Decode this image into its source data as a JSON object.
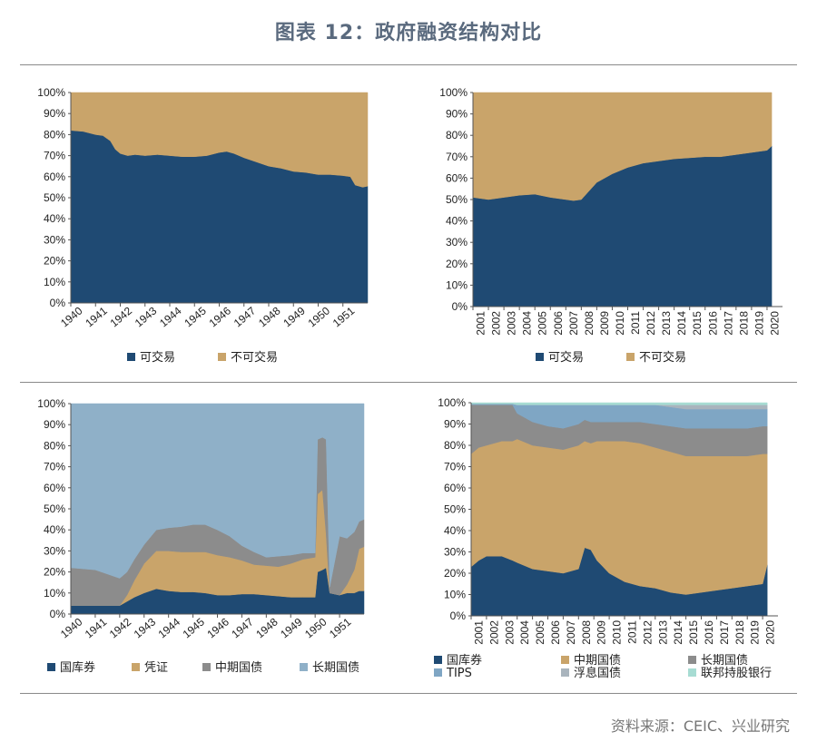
{
  "header": {
    "title": "图表 12：政府融资结构对比"
  },
  "footer": {
    "source": "资料来源：CEIC、兴业研究"
  },
  "colors": {
    "navy": "#1f4a73",
    "tan": "#c9a46a",
    "gray": "#8c8c8c",
    "lightblue": "#8fb0c8",
    "tips": "#7fa6c4",
    "floating": "#a9b4bd",
    "fed": "#a7dcd3"
  },
  "chart_data": [
    {
      "type": "area",
      "stacking": "percent",
      "x_ticks": [
        "1940",
        "1941",
        "1942",
        "1943",
        "1944",
        "1945",
        "1946",
        "1947",
        "1948",
        "1949",
        "1950",
        "1951"
      ],
      "x": [
        1940.0,
        1940.5,
        1941.0,
        1941.3,
        1941.6,
        1941.8,
        1942.0,
        1942.3,
        1942.6,
        1943.0,
        1943.5,
        1944.0,
        1944.5,
        1945.0,
        1945.5,
        1946.0,
        1946.3,
        1946.6,
        1947.0,
        1947.5,
        1948.0,
        1948.5,
        1949.0,
        1949.5,
        1950.0,
        1950.5,
        1951.0,
        1951.3,
        1951.5,
        1951.8,
        1952.0
      ],
      "ylim": [
        0,
        100
      ],
      "y_ticks": [
        "0%",
        "10%",
        "20%",
        "30%",
        "40%",
        "50%",
        "60%",
        "70%",
        "80%",
        "90%",
        "100%"
      ],
      "legend_position": "bottom",
      "series": [
        {
          "name": "可交易",
          "color": "#1f4a73",
          "values": [
            82,
            81.5,
            80,
            79.5,
            77,
            73,
            71,
            70,
            70.5,
            70,
            70.5,
            70,
            69.5,
            69.5,
            70,
            71.5,
            72,
            71,
            69,
            67,
            65,
            64,
            62.5,
            62,
            61,
            61,
            60.5,
            60,
            56,
            55,
            55.5
          ]
        },
        {
          "name": "不可交易",
          "color": "#c9a46a",
          "values": [
            18,
            18.5,
            20,
            20.5,
            23,
            27,
            29,
            30,
            29.5,
            30,
            29.5,
            30,
            30.5,
            30.5,
            30,
            28.5,
            28,
            29,
            31,
            33,
            35,
            36,
            37.5,
            38,
            39,
            39,
            39.5,
            40,
            44,
            45,
            44.5
          ]
        }
      ]
    },
    {
      "type": "area",
      "stacking": "percent",
      "x_ticks": [
        "2001",
        "2002",
        "2003",
        "2004",
        "2005",
        "2006",
        "2007",
        "2008",
        "2009",
        "2010",
        "2011",
        "2012",
        "2013",
        "2014",
        "2015",
        "2016",
        "2017",
        "2018",
        "2019",
        "2020"
      ],
      "x": [
        2001,
        2002,
        2003,
        2004,
        2005,
        2006,
        2007,
        2007.5,
        2008,
        2008.5,
        2009,
        2010,
        2011,
        2012,
        2013,
        2014,
        2015,
        2016,
        2017,
        2018,
        2019,
        2020,
        2020.3
      ],
      "ylim": [
        0,
        100
      ],
      "y_ticks": [
        "0%",
        "10%",
        "20%",
        "30%",
        "40%",
        "50%",
        "60%",
        "70%",
        "80%",
        "90%",
        "100%"
      ],
      "legend_position": "bottom",
      "series": [
        {
          "name": "可交易",
          "color": "#1f4a73",
          "values": [
            51,
            50,
            51,
            52,
            52.5,
            51,
            50,
            49.5,
            50,
            54,
            58,
            62,
            65,
            67,
            68,
            69,
            69.5,
            70,
            70,
            71,
            72,
            73,
            75
          ]
        },
        {
          "name": "不可交易",
          "color": "#c9a46a",
          "values": [
            49,
            50,
            49,
            48,
            47.5,
            49,
            50,
            50.5,
            50,
            46,
            42,
            38,
            35,
            33,
            32,
            31,
            30.5,
            30,
            30,
            29,
            28,
            27,
            25
          ]
        }
      ]
    },
    {
      "type": "area",
      "stacking": "percent",
      "x_ticks": [
        "1940",
        "1941",
        "1942",
        "1943",
        "1944",
        "1945",
        "1946",
        "1947",
        "1948",
        "1949",
        "1950",
        "1951"
      ],
      "x": [
        1940.0,
        1941.0,
        1941.5,
        1942.0,
        1942.3,
        1942.6,
        1943.0,
        1943.5,
        1944.0,
        1944.5,
        1945.0,
        1945.5,
        1946.0,
        1946.5,
        1947.0,
        1947.5,
        1948.0,
        1948.5,
        1949.0,
        1949.5,
        1950.0,
        1950.1,
        1950.3,
        1950.45,
        1950.6,
        1951.0,
        1951.3,
        1951.6,
        1951.8,
        1952.0
      ],
      "ylim": [
        0,
        100
      ],
      "y_ticks": [
        "0%",
        "10%",
        "20%",
        "30%",
        "40%",
        "50%",
        "60%",
        "70%",
        "80%",
        "90%",
        "100%"
      ],
      "legend_position": "bottom",
      "series": [
        {
          "name": "国库券",
          "color": "#1f4a73",
          "values": [
            4,
            4,
            4,
            4,
            6,
            8,
            10,
            12,
            11,
            10.5,
            10.5,
            10,
            9,
            9,
            9.5,
            9.5,
            9,
            8.5,
            8,
            8,
            8,
            20,
            21,
            22,
            10,
            9,
            10,
            10,
            11,
            11
          ]
        },
        {
          "name": "凭证",
          "color": "#c9a46a",
          "values": [
            0,
            0,
            0,
            0,
            3,
            8,
            14,
            18,
            19,
            19,
            19,
            19.5,
            19,
            18,
            16,
            14,
            14,
            14,
            16,
            18,
            19,
            37,
            38,
            16,
            0,
            0,
            4,
            11,
            20,
            21
          ]
        },
        {
          "name": "中期国债",
          "color": "#8c8c8c",
          "values": [
            18,
            17,
            15,
            13,
            11,
            10,
            9,
            10,
            11,
            12,
            13,
            13,
            12,
            10,
            7,
            6,
            4,
            5,
            4,
            3,
            2,
            26,
            25,
            45,
            3,
            28,
            22,
            18,
            13,
            13
          ]
        },
        {
          "name": "长期国债",
          "color": "#8fb0c8",
          "values": [
            78,
            79,
            81,
            83,
            80,
            74,
            67,
            60,
            59,
            58.5,
            57.5,
            57.5,
            60,
            63,
            67.5,
            70.5,
            73,
            72.5,
            72,
            71,
            71,
            17,
            16,
            17,
            87,
            63,
            64,
            61,
            56,
            55
          ]
        }
      ]
    },
    {
      "type": "area",
      "stacking": "percent",
      "x_ticks": [
        "2001",
        "2002",
        "2003",
        "2004",
        "2005",
        "2006",
        "2007",
        "2008",
        "2009",
        "2010",
        "2011",
        "2012",
        "2013",
        "2014",
        "2015",
        "2016",
        "2017",
        "2018",
        "2019",
        "2020"
      ],
      "x": [
        2001,
        2001.5,
        2002,
        2003,
        2003.7,
        2004,
        2005,
        2006,
        2007,
        2008,
        2008.4,
        2008.8,
        2009.2,
        2010,
        2011,
        2012,
        2013,
        2014,
        2015,
        2016,
        2017,
        2018,
        2019,
        2020,
        2020.3
      ],
      "ylim": [
        0,
        100
      ],
      "y_ticks": [
        "0%",
        "10%",
        "20%",
        "30%",
        "40%",
        "50%",
        "60%",
        "70%",
        "80%",
        "90%",
        "100%"
      ],
      "legend_position": "bottom",
      "series": [
        {
          "name": "国库券",
          "color": "#1f4a73",
          "values": [
            23,
            26,
            28,
            28,
            26,
            25,
            22,
            21,
            20,
            22,
            32,
            31,
            26,
            20,
            16,
            14,
            13,
            11,
            10,
            11,
            12,
            13,
            14,
            15,
            24
          ]
        },
        {
          "name": "中期国债",
          "color": "#c9a46a",
          "values": [
            53,
            53,
            52,
            54,
            56,
            58,
            58,
            58,
            58,
            58,
            50,
            50,
            56,
            62,
            66,
            67,
            66,
            66,
            65,
            64,
            63,
            62,
            61,
            61,
            52
          ]
        },
        {
          "name": "长期国债",
          "color": "#8c8c8c",
          "values": [
            23,
            20,
            19,
            17,
            17,
            12,
            11,
            10,
            10,
            10,
            10,
            10,
            9,
            9,
            9,
            10,
            11,
            12,
            13,
            13,
            13,
            13,
            13,
            13,
            13
          ]
        },
        {
          "name": "TIPS",
          "color": "#7fa6c4",
          "values": [
            0.5,
            0.5,
            0.5,
            0.5,
            0.5,
            4,
            8,
            10,
            11,
            9,
            7,
            8,
            8,
            8,
            8,
            8,
            9,
            9,
            9,
            9,
            9,
            9,
            9,
            8,
            8
          ]
        },
        {
          "name": "浮息国债",
          "color": "#a9b4bd",
          "values": [
            0,
            0,
            0,
            0,
            0,
            0,
            0,
            0,
            0,
            0,
            0,
            0,
            0,
            0,
            0,
            0,
            0,
            1,
            2,
            2,
            2,
            2,
            2,
            2,
            2
          ]
        },
        {
          "name": "联邦持股银行",
          "color": "#a7dcd3",
          "values": [
            0.5,
            0.5,
            0.5,
            0.5,
            0.5,
            1,
            1,
            1,
            1,
            1,
            1,
            1,
            1,
            1,
            1,
            1,
            1,
            1,
            1,
            1,
            1,
            1,
            1,
            1,
            1
          ]
        }
      ]
    }
  ]
}
